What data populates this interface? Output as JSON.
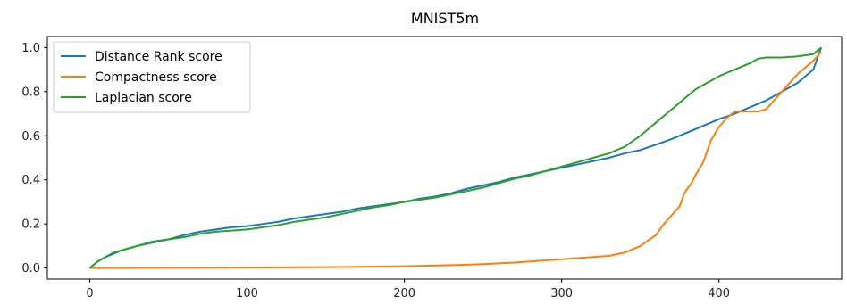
{
  "chart_data": {
    "type": "line",
    "title": "MNIST5m",
    "xlabel": "",
    "ylabel": "",
    "xlim": [
      -27,
      478
    ],
    "ylim": [
      -0.05,
      1.05
    ],
    "xticks": [
      0,
      100,
      200,
      300,
      400
    ],
    "yticks": [
      0.0,
      0.2,
      0.4,
      0.6,
      0.8,
      1.0
    ],
    "xtick_labels": [
      "0",
      "100",
      "200",
      "300",
      "400"
    ],
    "ytick_labels": [
      "0.0",
      "0.2",
      "0.4",
      "0.6",
      "0.8",
      "1.0"
    ],
    "grid": false,
    "legend_position": "top-left",
    "series": [
      {
        "name": "Distance Rank score",
        "color": "#1f77b4",
        "x": [
          0,
          5,
          10,
          20,
          30,
          40,
          50,
          60,
          70,
          80,
          90,
          100,
          110,
          120,
          130,
          140,
          150,
          160,
          170,
          180,
          190,
          200,
          210,
          220,
          230,
          240,
          250,
          260,
          270,
          280,
          290,
          300,
          310,
          320,
          330,
          340,
          350,
          360,
          370,
          380,
          390,
          400,
          410,
          420,
          430,
          440,
          450,
          455,
          460,
          465
        ],
        "y": [
          0.0,
          0.03,
          0.05,
          0.08,
          0.1,
          0.12,
          0.13,
          0.15,
          0.165,
          0.175,
          0.185,
          0.19,
          0.2,
          0.21,
          0.225,
          0.235,
          0.245,
          0.255,
          0.27,
          0.28,
          0.29,
          0.3,
          0.315,
          0.325,
          0.34,
          0.36,
          0.375,
          0.39,
          0.41,
          0.425,
          0.44,
          0.455,
          0.47,
          0.485,
          0.5,
          0.52,
          0.535,
          0.56,
          0.585,
          0.615,
          0.645,
          0.675,
          0.7,
          0.73,
          0.76,
          0.8,
          0.84,
          0.87,
          0.9,
          1.0
        ]
      },
      {
        "name": "Compactness score",
        "color": "#ff7f0e",
        "x": [
          0,
          50,
          100,
          150,
          200,
          230,
          250,
          270,
          290,
          310,
          330,
          340,
          345,
          350,
          355,
          360,
          365,
          370,
          375,
          378,
          380,
          383,
          385,
          390,
          395,
          400,
          405,
          410,
          420,
          425,
          430,
          435,
          440,
          445,
          450,
          455,
          460,
          465
        ],
        "y": [
          0.0,
          0.001,
          0.002,
          0.004,
          0.008,
          0.013,
          0.018,
          0.025,
          0.035,
          0.045,
          0.055,
          0.07,
          0.085,
          0.1,
          0.125,
          0.15,
          0.2,
          0.24,
          0.28,
          0.34,
          0.36,
          0.39,
          0.42,
          0.48,
          0.58,
          0.64,
          0.68,
          0.71,
          0.71,
          0.71,
          0.72,
          0.76,
          0.8,
          0.84,
          0.88,
          0.91,
          0.94,
          0.98
        ]
      },
      {
        "name": "Laplacian score",
        "color": "#2ca02c",
        "x": [
          0,
          5,
          10,
          15,
          20,
          30,
          40,
          50,
          60,
          70,
          80,
          90,
          100,
          110,
          120,
          130,
          140,
          150,
          160,
          170,
          180,
          190,
          200,
          210,
          220,
          230,
          240,
          250,
          260,
          270,
          280,
          290,
          300,
          310,
          320,
          330,
          340,
          345,
          350,
          355,
          360,
          365,
          370,
          375,
          380,
          385,
          390,
          395,
          400,
          410,
          420,
          425,
          430,
          440,
          450,
          460,
          465
        ],
        "y": [
          0.0,
          0.03,
          0.05,
          0.07,
          0.08,
          0.1,
          0.115,
          0.13,
          0.14,
          0.155,
          0.165,
          0.17,
          0.175,
          0.185,
          0.195,
          0.21,
          0.22,
          0.23,
          0.245,
          0.26,
          0.275,
          0.285,
          0.3,
          0.31,
          0.32,
          0.335,
          0.35,
          0.365,
          0.385,
          0.405,
          0.42,
          0.44,
          0.46,
          0.48,
          0.5,
          0.52,
          0.55,
          0.575,
          0.6,
          0.63,
          0.66,
          0.69,
          0.72,
          0.75,
          0.78,
          0.81,
          0.83,
          0.85,
          0.87,
          0.9,
          0.93,
          0.95,
          0.955,
          0.955,
          0.96,
          0.97,
          1.0
        ]
      }
    ]
  }
}
